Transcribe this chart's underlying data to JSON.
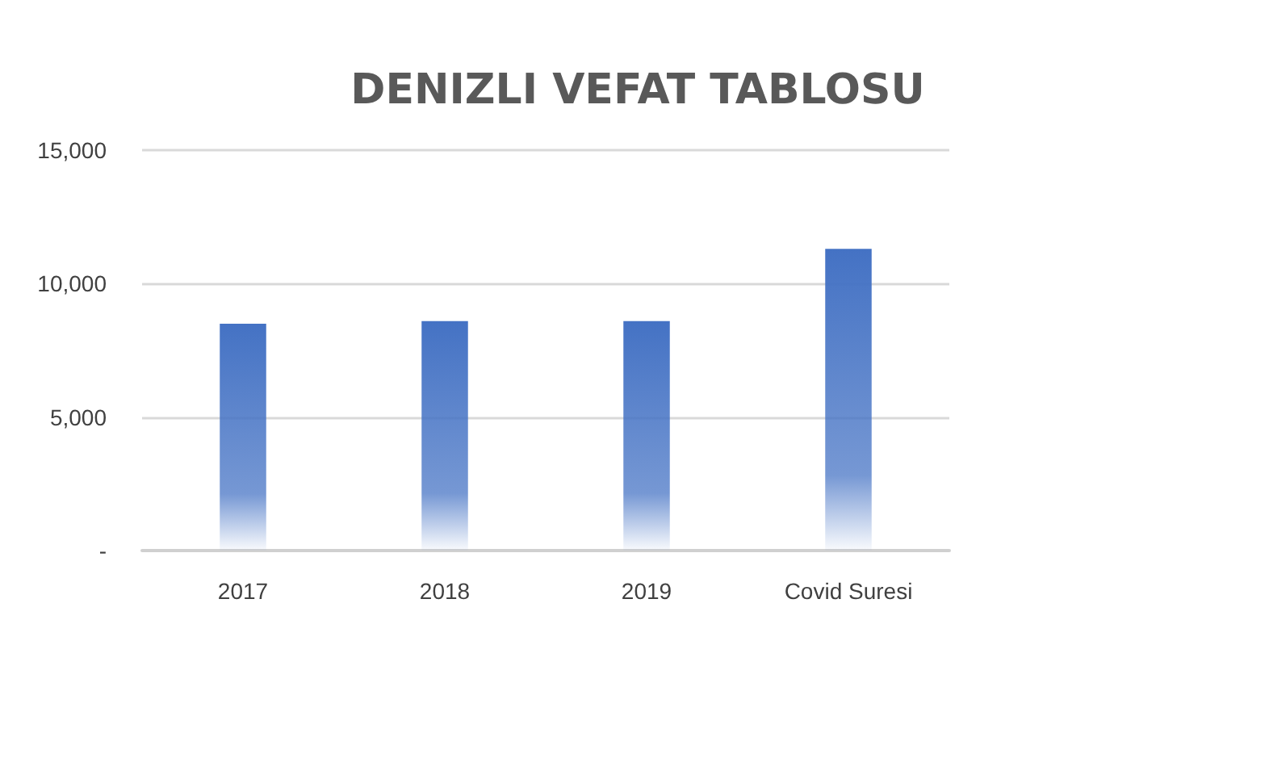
{
  "chart_data": {
    "type": "bar",
    "title": "DENIZLI VEFAT TABLOSU",
    "categories": [
      "2017",
      "2018",
      "2019",
      "Covid Suresi"
    ],
    "values": [
      8500,
      8600,
      8600,
      11300
    ],
    "color": "#4472c4",
    "ylim": [
      0,
      15000
    ],
    "yticks": [
      {
        "value": 0,
        "label": "-"
      },
      {
        "value": 5000,
        "label": "5,000"
      },
      {
        "value": 10000,
        "label": "10,000"
      },
      {
        "value": 15000,
        "label": "15,000"
      }
    ],
    "grid": "y"
  }
}
